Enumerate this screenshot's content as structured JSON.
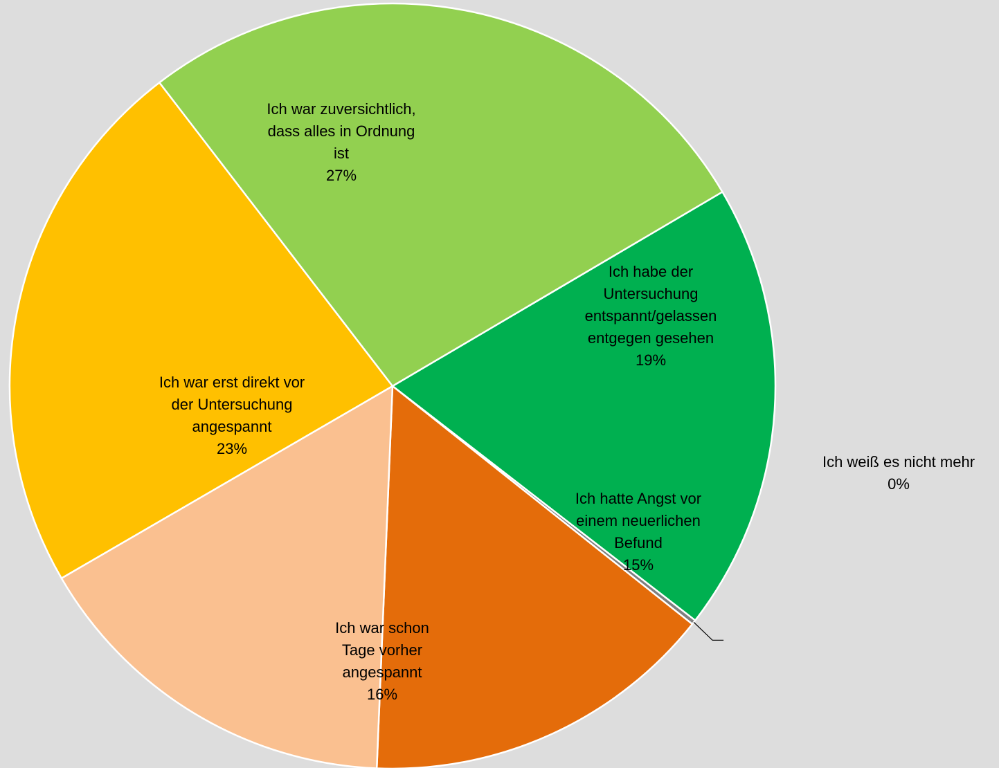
{
  "chart_data": {
    "type": "pie",
    "slices": [
      {
        "name": "Ich habe der Untersuchung entspannt/gelassen entgegen gesehen",
        "lines": [
          "Ich habe der",
          "Untersuchung",
          "entspannt/gelassen",
          "entgegen gesehen"
        ],
        "value": 19,
        "value_label": "19%",
        "color": "#00b050"
      },
      {
        "name": "Ich weiß es nicht mehr",
        "lines": [
          "Ich weiß es nicht mehr"
        ],
        "value": 0,
        "value_label": "0%",
        "color": "#7f7f7f"
      },
      {
        "name": "Ich hatte Angst vor einem neuerlichen Befund",
        "lines": [
          "Ich hatte Angst vor",
          "einem neuerlichen",
          "Befund"
        ],
        "value": 15,
        "value_label": "15%",
        "color": "#e46c0a"
      },
      {
        "name": "Ich war schon Tage vorher angespannt",
        "lines": [
          "Ich war schon",
          "Tage vorher",
          "angespannt"
        ],
        "value": 16,
        "value_label": "16%",
        "color": "#fac090"
      },
      {
        "name": "Ich war erst direkt vor der Untersuchung angespannt",
        "lines": [
          "Ich war erst direkt vor",
          "der Untersuchung",
          "angespannt"
        ],
        "value": 23,
        "value_label": "23%",
        "color": "#ffc000"
      },
      {
        "name": "Ich war zuversichtlich, dass alles in Ordnung ist",
        "lines": [
          "Ich war zuversichtlich,",
          "dass alles in Ordnung",
          "ist"
        ],
        "value": 27,
        "value_label": "27%",
        "color": "#92d050"
      }
    ],
    "background": "#dddddd"
  }
}
